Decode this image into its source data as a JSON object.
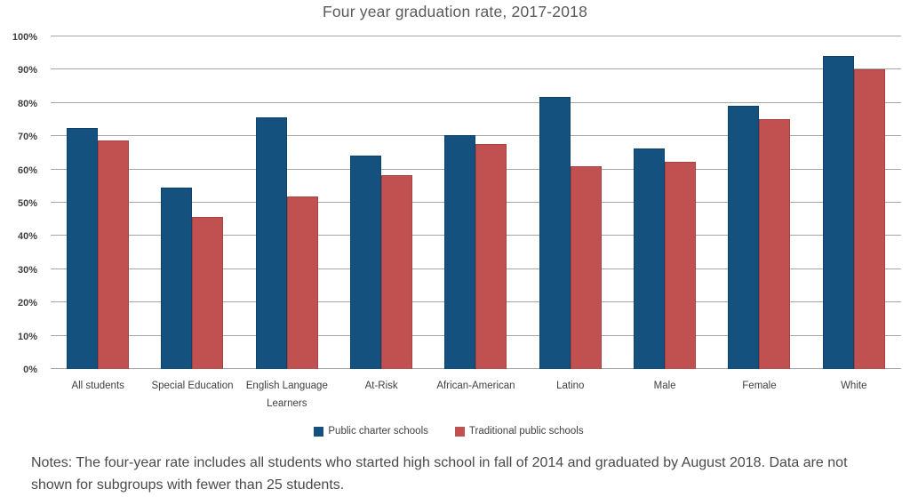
{
  "title": "Four year graduation rate, 2017-2018",
  "chart_data": {
    "type": "bar",
    "title": "Four year graduation rate, 2017-2018",
    "categories": [
      "All students",
      "Special Education",
      "English Language Learners",
      "At-Risk",
      "African-American",
      "Latino",
      "Male",
      "Female",
      "White"
    ],
    "series": [
      {
        "name": "Public charter schools",
        "color": "#15517e",
        "values": [
          72.5,
          54.5,
          75.8,
          64.2,
          70.4,
          81.8,
          66.3,
          79.1,
          94.2
        ]
      },
      {
        "name": "Traditional public schools",
        "color": "#c05150",
        "values": [
          68.6,
          45.8,
          51.8,
          58.3,
          67.6,
          61.0,
          62.4,
          75.1,
          90.2
        ]
      }
    ],
    "xlabel": "",
    "ylabel": "",
    "ylim": [
      0,
      100
    ],
    "ytick_step": 10,
    "ytick_labels": [
      "0%",
      "10%",
      "20%",
      "30%",
      "40%",
      "50%",
      "60%",
      "70%",
      "80%",
      "90%",
      "100%"
    ],
    "grid": true,
    "legend_position": "bottom",
    "gridline_color": "#a6a6a6",
    "title_color": "#595959",
    "axis_label_color": "#404040"
  },
  "legend": {
    "items": [
      {
        "label": "Public charter schools",
        "color": "#15517e"
      },
      {
        "label": "Traditional public schools",
        "color": "#c05150"
      }
    ]
  },
  "notes": "Notes: The four-year rate includes all students who started high school in fall of 2014 and graduated by August 2018. Data are not shown for subgroups with fewer than 25 students."
}
